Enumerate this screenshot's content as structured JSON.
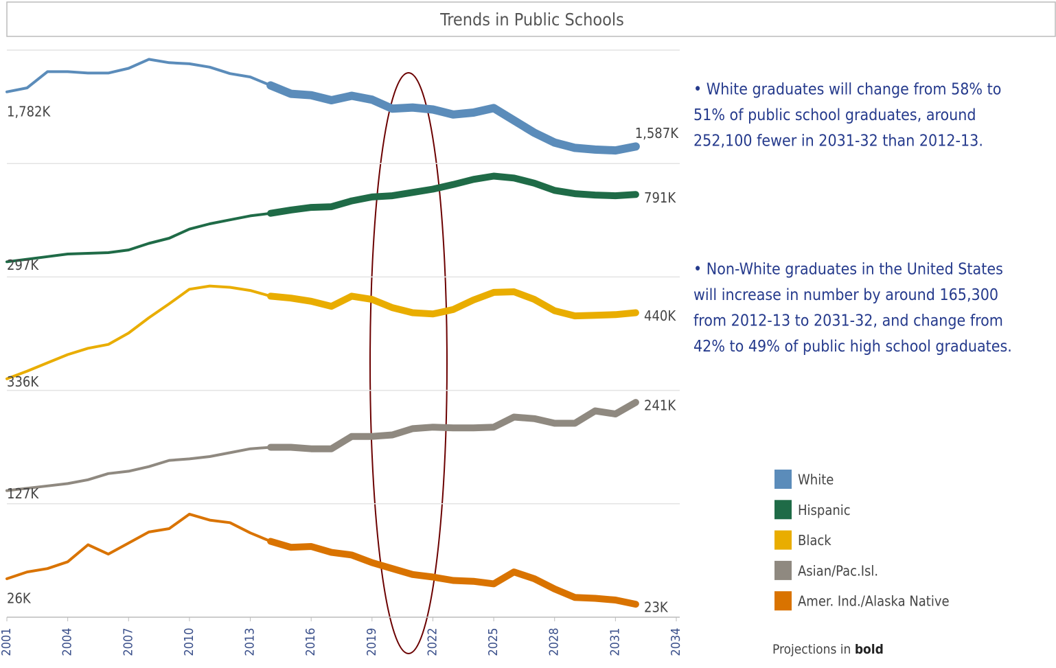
{
  "chart_data": {
    "type": "line",
    "title": "Trends in Public Schools",
    "x": [
      2001,
      2002,
      2003,
      2004,
      2005,
      2006,
      2007,
      2008,
      2009,
      2010,
      2011,
      2012,
      2013,
      2014,
      2015,
      2016,
      2017,
      2018,
      2019,
      2020,
      2021,
      2022,
      2023,
      2024,
      2025,
      2026,
      2027,
      2028,
      2029,
      2030,
      2031,
      2032
    ],
    "xlim": [
      2001,
      2034
    ],
    "xticks": [
      2001,
      2004,
      2007,
      2010,
      2013,
      2016,
      2019,
      2022,
      2025,
      2028,
      2031,
      2034
    ],
    "projected_from": 2014,
    "series": [
      {
        "name": "White",
        "color": "#5b8cba",
        "ylim": [
          1536,
          1921
        ],
        "values": [
          1782,
          1796,
          1854,
          1854,
          1849,
          1849,
          1866,
          1898,
          1886,
          1882,
          1870,
          1847,
          1835,
          1805,
          1775,
          1770,
          1752,
          1768,
          1754,
          1722,
          1726,
          1719,
          1701,
          1708,
          1724,
          1680,
          1636,
          1601,
          1582,
          1576,
          1573,
          1587
        ],
        "value_labels": [
          "1,782K",
          null,
          null,
          null,
          null,
          null,
          null,
          null,
          null,
          null,
          null,
          null,
          null,
          null,
          null,
          null,
          null,
          null,
          null,
          null,
          null,
          null,
          null,
          null,
          null,
          null,
          null,
          null,
          null,
          null,
          null,
          "1,587K"
        ]
      },
      {
        "name": "Hispanic",
        "color": "#1f6b47",
        "ylim": [
          206,
          998
        ],
        "values": [
          297,
          316,
          335,
          354,
          359,
          364,
          384,
          432,
          470,
          537,
          576,
          605,
          634,
          653,
          677,
          696,
          701,
          744,
          773,
          782,
          806,
          830,
          864,
          902,
          926,
          912,
          874,
          821,
          797,
          787,
          782,
          791
        ],
        "value_labels": [
          "297K",
          null,
          null,
          null,
          null,
          null,
          null,
          null,
          null,
          null,
          null,
          null,
          null,
          null,
          null,
          null,
          null,
          null,
          null,
          null,
          null,
          null,
          null,
          null,
          null,
          null,
          null,
          null,
          null,
          null,
          null,
          "791K"
        ]
      },
      {
        "name": "Black",
        "color": "#e9ad00",
        "ylim": [
          322,
          492
        ],
        "values": [
          336,
          348,
          361,
          374,
          384,
          390,
          408,
          432,
          454,
          477,
          482,
          480,
          475,
          466,
          463,
          458,
          450,
          466,
          461,
          448,
          440,
          438,
          445,
          460,
          472,
          473,
          461,
          443,
          435,
          436,
          437,
          440
        ],
        "value_labels": [
          "336K",
          null,
          null,
          null,
          null,
          null,
          null,
          null,
          null,
          null,
          null,
          null,
          null,
          null,
          null,
          null,
          null,
          null,
          null,
          null,
          null,
          null,
          null,
          null,
          null,
          null,
          null,
          null,
          null,
          null,
          null,
          "440K"
        ]
      },
      {
        "name": "Asian/Pac.Isl.",
        "color": "#8f8980",
        "ylim": [
          113.5,
          253
        ],
        "values": [
          127,
          130,
          133,
          136,
          141,
          149,
          152,
          158,
          166,
          168,
          171,
          176,
          181,
          183,
          183,
          181,
          181,
          197,
          197,
          199,
          207,
          209,
          208,
          208,
          209,
          222,
          220,
          214,
          214,
          230,
          226,
          241
        ],
        "value_labels": [
          "127K",
          null,
          null,
          null,
          null,
          null,
          null,
          null,
          null,
          null,
          null,
          null,
          null,
          null,
          null,
          null,
          null,
          null,
          null,
          null,
          null,
          null,
          null,
          null,
          null,
          null,
          null,
          null,
          null,
          null,
          null,
          "241K"
        ]
      },
      {
        "name": "Amer. Ind./Alaska Native",
        "color": "#d97300",
        "ylim": [
          21.8,
          34.5
        ],
        "values": [
          26,
          26.8,
          27.2,
          28.0,
          30.0,
          28.9,
          30.2,
          31.5,
          31.9,
          33.6,
          32.9,
          32.6,
          31.4,
          30.4,
          29.7,
          29.8,
          29.1,
          28.8,
          27.9,
          27.2,
          26.5,
          26.2,
          25.8,
          25.7,
          25.4,
          26.8,
          26.0,
          24.8,
          23.8,
          23.7,
          23.5,
          23.0
        ],
        "value_labels": [
          "26K",
          null,
          null,
          null,
          null,
          null,
          null,
          null,
          null,
          null,
          null,
          null,
          null,
          null,
          null,
          null,
          null,
          null,
          null,
          null,
          null,
          null,
          null,
          null,
          null,
          null,
          null,
          null,
          null,
          null,
          null,
          "23K"
        ]
      }
    ],
    "annotations": [
      [
        "• White graduates will change from 58% to",
        "51% of public school graduates, around",
        "252,100 fewer in 2031-32 than 2012-13."
      ],
      [
        "• Non-White graduates in the United States",
        "will increase in number by around 165,300",
        "from 2012-13 to 2031-32, and change from",
        "42% to 49% of public high school graduates."
      ]
    ],
    "note": {
      "text": "Projections in",
      "emphasis": "bold"
    }
  }
}
